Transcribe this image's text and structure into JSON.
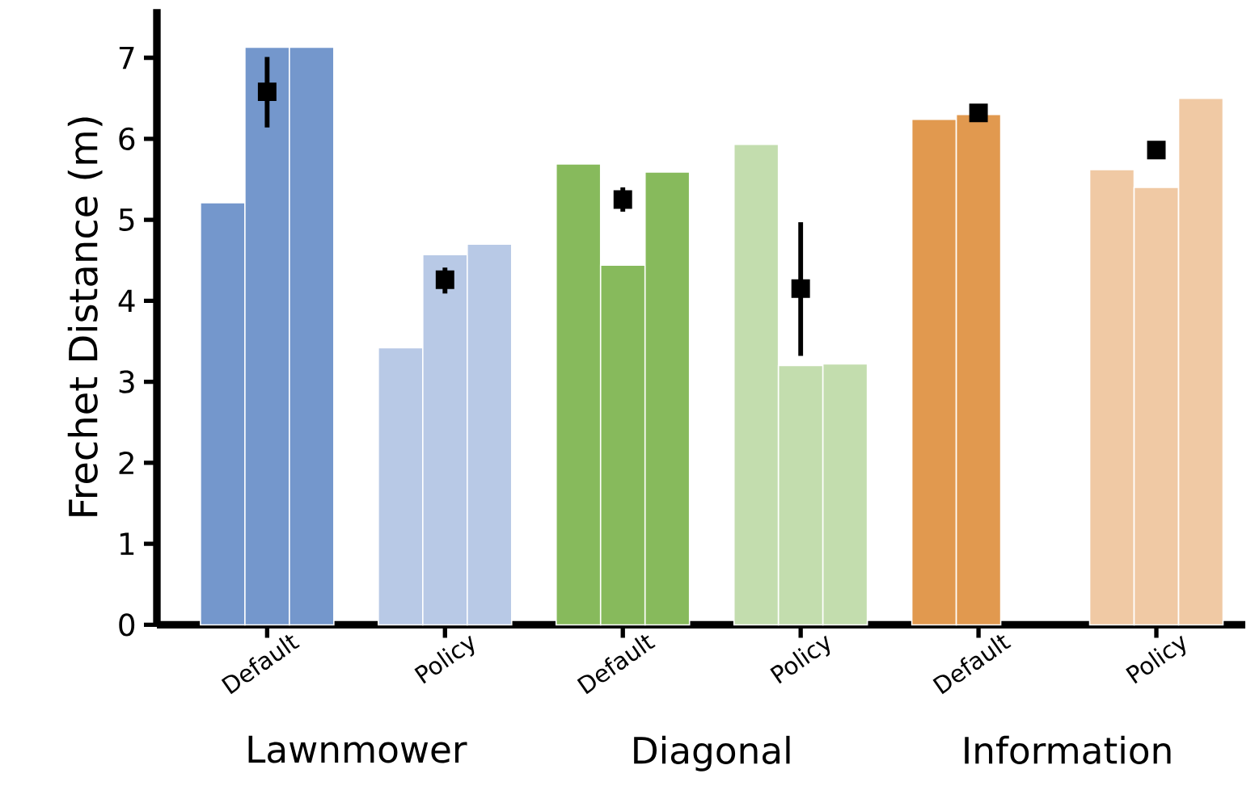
{
  "chart_data": {
    "type": "bar",
    "ylabel": "Frechet Distance (m)",
    "categories": [
      "Default",
      "Policy",
      "Default",
      "Policy",
      "Default",
      "Policy"
    ],
    "series": [
      {
        "colors": [
          "#7497cc",
          "#b8c9e6",
          "#87ba5c",
          "#c3ddae",
          "#e1994f",
          "#f0c9a4"
        ],
        "values": [
          5.21,
          3.42,
          5.69,
          5.93,
          6.24,
          5.62
        ]
      },
      {
        "colors": [
          "#7497cc",
          "#b8c9e6",
          "#87ba5c",
          "#c3ddae",
          "#e1994f",
          "#f0c9a4"
        ],
        "values": [
          7.13,
          4.57,
          4.44,
          3.2,
          6.3,
          5.4
        ]
      },
      {
        "colors": [
          "#7497cc",
          "#b8c9e6",
          "#87ba5c",
          "#c3ddae",
          "#e1994f",
          "#f0c9a4"
        ],
        "values": [
          7.13,
          4.7,
          5.59,
          3.22,
          null,
          6.5
        ]
      },
      {
        "type": "scatter",
        "color": "#000000",
        "values": [
          6.58,
          4.26,
          5.25,
          4.15,
          6.32,
          5.86
        ],
        "errors": [
          [
            6.14,
            7.01
          ],
          [
            4.09,
            4.41
          ],
          [
            5.1,
            5.4
          ],
          [
            3.32,
            4.97
          ],
          null,
          [
            5.75,
            5.96
          ]
        ]
      }
    ],
    "ylim": [
      0,
      7.6
    ],
    "yticks": [
      0,
      1,
      2,
      3,
      4,
      5,
      6,
      7
    ],
    "grid": false,
    "marker": "square",
    "annotations": [
      "Lawnmower",
      "Diagonal",
      "Information"
    ]
  }
}
